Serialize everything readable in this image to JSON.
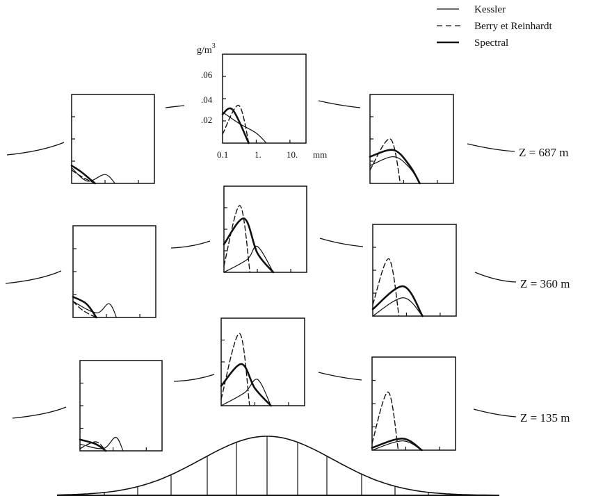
{
  "legend": {
    "items": [
      {
        "label": "Kessler",
        "style": "solid-thin"
      },
      {
        "label": "Berry et Reinhardt",
        "style": "dashed"
      },
      {
        "label": "Spectral",
        "style": "solid-thick"
      }
    ],
    "placement": "top-right"
  },
  "axes": {
    "y_unit_main": "g/m",
    "y_unit_sup": "3",
    "y_ticks": [
      ".06",
      ".04",
      ".02"
    ],
    "x_ticks": [
      "0.1",
      "1.",
      "10."
    ],
    "x_unit": "mm"
  },
  "rows": [
    {
      "label": "Z = 687 m"
    },
    {
      "label": "Z = 360 m"
    },
    {
      "label": "Z = 135 m"
    }
  ],
  "chart_data": {
    "type": "line",
    "description_free": true,
    "x_scale": "log",
    "xlim": [
      0.1,
      30
    ],
    "ylim": [
      0,
      0.08
    ],
    "panels": [
      {
        "row": "Z = 687 m",
        "col": "left",
        "series": [
          {
            "name": "Kessler",
            "x": [
              0.1,
              0.3,
              1.0,
              2.0
            ],
            "y": [
              0.014,
              0.002,
              0.008,
              0.0
            ]
          },
          {
            "name": "Berry et Reinhardt",
            "x": [
              0.1,
              0.2,
              0.5
            ],
            "y": [
              0.012,
              0.006,
              0.0
            ]
          },
          {
            "name": "Spectral",
            "x": [
              0.1,
              0.2,
              0.5
            ],
            "y": [
              0.016,
              0.01,
              0.0
            ]
          }
        ]
      },
      {
        "row": "Z = 687 m",
        "col": "center",
        "series": [
          {
            "name": "Kessler",
            "x": [
              0.1,
              0.3,
              1.0,
              2.0
            ],
            "y": [
              0.028,
              0.018,
              0.009,
              0.0
            ]
          },
          {
            "name": "Berry et Reinhardt",
            "x": [
              0.1,
              0.3,
              0.6
            ],
            "y": [
              0.008,
              0.034,
              0.0
            ]
          },
          {
            "name": "Spectral",
            "x": [
              0.1,
              0.2,
              0.6
            ],
            "y": [
              0.026,
              0.03,
              0.0
            ]
          }
        ]
      },
      {
        "row": "Z = 687 m",
        "col": "right",
        "series": [
          {
            "name": "Kessler",
            "x": [
              0.1,
              0.5,
              1.5,
              3.0
            ],
            "y": [
              0.016,
              0.024,
              0.014,
              0.0
            ]
          },
          {
            "name": "Berry et Reinhardt",
            "x": [
              0.1,
              0.4,
              0.8
            ],
            "y": [
              0.012,
              0.04,
              0.0
            ]
          },
          {
            "name": "Spectral",
            "x": [
              0.1,
              0.5,
              1.5,
              3.0
            ],
            "y": [
              0.024,
              0.03,
              0.016,
              0.0
            ]
          }
        ]
      },
      {
        "row": "Z = 360 m",
        "col": "left",
        "series": [
          {
            "name": "Kessler",
            "x": [
              0.1,
              0.5,
              1.2,
              2.0
            ],
            "y": [
              0.014,
              0.004,
              0.012,
              0.0
            ]
          },
          {
            "name": "Berry et Reinhardt",
            "x": [
              0.1,
              0.2,
              0.5
            ],
            "y": [
              0.014,
              0.006,
              0.0
            ]
          },
          {
            "name": "Spectral",
            "x": [
              0.1,
              0.25,
              0.5
            ],
            "y": [
              0.018,
              0.012,
              0.0
            ]
          }
        ]
      },
      {
        "row": "Z = 360 m",
        "col": "center",
        "series": [
          {
            "name": "Kessler",
            "x": [
              0.1,
              0.5,
              1.0,
              3.0
            ],
            "y": [
              0.0,
              0.012,
              0.024,
              0.0
            ]
          },
          {
            "name": "Berry et Reinhardt",
            "x": [
              0.1,
              0.3,
              0.6
            ],
            "y": [
              0.006,
              0.062,
              0.0
            ]
          },
          {
            "name": "Spectral",
            "x": [
              0.1,
              0.4,
              1.0,
              3.0
            ],
            "y": [
              0.026,
              0.05,
              0.018,
              0.0
            ]
          }
        ]
      },
      {
        "row": "Z = 360 m",
        "col": "right",
        "series": [
          {
            "name": "Kessler",
            "x": [
              0.1,
              0.8,
              3.0
            ],
            "y": [
              0.0,
              0.016,
              0.0
            ]
          },
          {
            "name": "Berry et Reinhardt",
            "x": [
              0.1,
              0.3,
              0.6
            ],
            "y": [
              0.01,
              0.05,
              0.0
            ]
          },
          {
            "name": "Spectral",
            "x": [
              0.1,
              0.8,
              3.0
            ],
            "y": [
              0.006,
              0.026,
              0.0
            ]
          }
        ]
      },
      {
        "row": "Z = 135 m",
        "col": "left",
        "series": [
          {
            "name": "Kessler",
            "x": [
              0.1,
              0.5,
              1.2,
              2.0
            ],
            "y": [
              0.006,
              0.002,
              0.012,
              0.0
            ]
          },
          {
            "name": "Berry et Reinhardt",
            "x": [
              0.1,
              0.3,
              0.6
            ],
            "y": [
              0.002,
              0.008,
              0.0
            ]
          },
          {
            "name": "Spectral",
            "x": [
              0.1,
              0.3,
              0.6
            ],
            "y": [
              0.01,
              0.006,
              0.0
            ]
          }
        ]
      },
      {
        "row": "Z = 135 m",
        "col": "center",
        "series": [
          {
            "name": "Kessler",
            "x": [
              0.1,
              0.5,
              1.2,
              3.0
            ],
            "y": [
              0.0,
              0.012,
              0.024,
              0.0
            ]
          },
          {
            "name": "Berry et Reinhardt",
            "x": [
              0.1,
              0.35,
              0.7
            ],
            "y": [
              0.006,
              0.066,
              0.0
            ]
          },
          {
            "name": "Spectral",
            "x": [
              0.1,
              0.4,
              1.0,
              3.0
            ],
            "y": [
              0.018,
              0.038,
              0.016,
              0.0
            ]
          }
        ]
      },
      {
        "row": "Z = 135 m",
        "col": "right",
        "series": [
          {
            "name": "Kessler",
            "x": [
              0.1,
              0.8,
              3.0
            ],
            "y": [
              0.0,
              0.008,
              0.0
            ]
          },
          {
            "name": "Berry et Reinhardt",
            "x": [
              0.1,
              0.3,
              0.6
            ],
            "y": [
              0.006,
              0.05,
              0.0
            ]
          },
          {
            "name": "Spectral",
            "x": [
              0.1,
              0.8,
              3.0
            ],
            "y": [
              0.002,
              0.01,
              0.0
            ]
          }
        ]
      }
    ]
  }
}
